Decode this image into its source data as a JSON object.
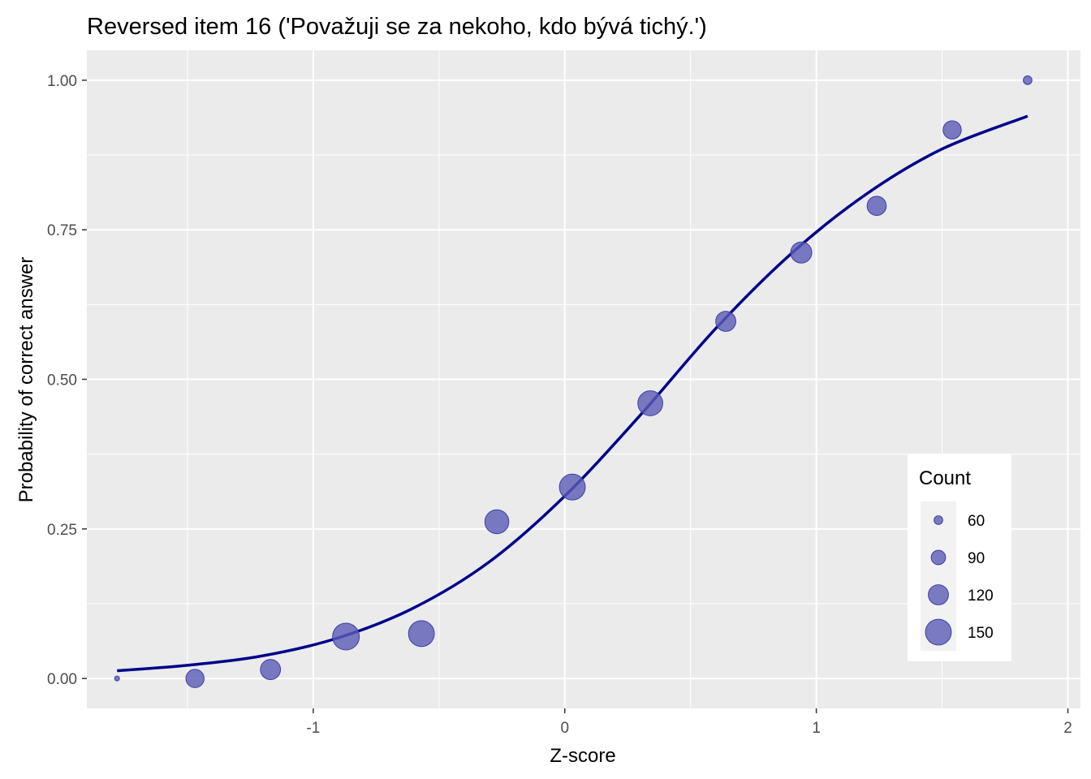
{
  "chart_data": {
    "type": "scatter",
    "title": "Reversed item 16 ('Považuji se za nekoho, kdo bývá tichý.')",
    "xlabel": "Z-score",
    "ylabel": "Probability of correct answer",
    "xlim": [
      -1.9,
      2.05
    ],
    "ylim": [
      -0.05,
      1.05
    ],
    "x_ticks": [
      -1,
      0,
      1,
      2
    ],
    "y_ticks": [
      0.0,
      0.25,
      0.5,
      0.75,
      1.0
    ],
    "x_tick_labels": [
      "-1",
      "0",
      "1",
      "2"
    ],
    "y_tick_labels": [
      "0.00",
      "0.25",
      "0.50",
      "0.75",
      "1.00"
    ],
    "grid": true,
    "points": [
      {
        "x": -1.78,
        "y": 0.0,
        "count": 40
      },
      {
        "x": -1.47,
        "y": 0.0,
        "count": 110
      },
      {
        "x": -1.17,
        "y": 0.015,
        "count": 120
      },
      {
        "x": -0.87,
        "y": 0.07,
        "count": 155
      },
      {
        "x": -0.57,
        "y": 0.075,
        "count": 150
      },
      {
        "x": -0.27,
        "y": 0.262,
        "count": 140
      },
      {
        "x": 0.03,
        "y": 0.32,
        "count": 150
      },
      {
        "x": 0.34,
        "y": 0.46,
        "count": 145
      },
      {
        "x": 0.64,
        "y": 0.597,
        "count": 120
      },
      {
        "x": 0.94,
        "y": 0.712,
        "count": 125
      },
      {
        "x": 1.24,
        "y": 0.79,
        "count": 115
      },
      {
        "x": 1.54,
        "y": 0.917,
        "count": 110
      },
      {
        "x": 1.84,
        "y": 1.0,
        "count": 60
      }
    ],
    "curve": {
      "type": "logistic",
      "x_range": [
        -1.78,
        1.84
      ],
      "points": [
        {
          "x": -1.78,
          "y": 0.013
        },
        {
          "x": -1.5,
          "y": 0.022
        },
        {
          "x": -1.2,
          "y": 0.038
        },
        {
          "x": -0.9,
          "y": 0.068
        },
        {
          "x": -0.6,
          "y": 0.118
        },
        {
          "x": -0.3,
          "y": 0.195
        },
        {
          "x": 0.0,
          "y": 0.305
        },
        {
          "x": 0.3,
          "y": 0.44
        },
        {
          "x": 0.6,
          "y": 0.585
        },
        {
          "x": 0.9,
          "y": 0.71
        },
        {
          "x": 1.2,
          "y": 0.81
        },
        {
          "x": 1.5,
          "y": 0.885
        },
        {
          "x": 1.84,
          "y": 0.94
        }
      ]
    },
    "legend": {
      "title": "Count",
      "placement": "bottom-right",
      "entries": [
        {
          "label": "60",
          "count": 60
        },
        {
          "label": "90",
          "count": 90
        },
        {
          "label": "120",
          "count": 120
        },
        {
          "label": "150",
          "count": 150
        }
      ]
    },
    "colors": {
      "panel": "#ebebeb",
      "grid": "#ffffff",
      "point_fill": "#5b5bb7",
      "point_stroke": "#3d3da8",
      "curve": "#00008b"
    }
  }
}
